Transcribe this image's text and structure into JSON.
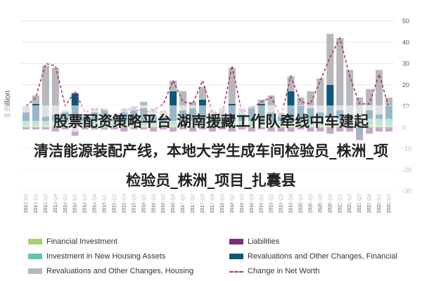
{
  "banner": {
    "line1": "股票配资策略平台 湖南援藏工作队牵线中车建起",
    "line2": "清洁能源装配产线，本地大学生成车间检验员_株洲_项",
    "line3": "检验员_株洲_项目_扎囊县"
  },
  "legend": [
    {
      "label": "Financial Investment",
      "color": "#a9cf6e",
      "style": "box"
    },
    {
      "label": "Liabilities",
      "color": "#7b2d7e",
      "style": "box"
    },
    {
      "label": "Investment in New Housing Assets",
      "color": "#63c2b4",
      "style": "box"
    },
    {
      "label": "Revaluations and Other Changes, Financial",
      "color": "#0d5779",
      "style": "box"
    },
    {
      "label": "Revaluations and Other Changes, Housing",
      "color": "#b6b8bb",
      "style": "box"
    },
    {
      "label": "Change in Net Worth",
      "color": "#b0336a",
      "style": "dash"
    }
  ],
  "chart_data": {
    "type": "bar",
    "stacked": true,
    "ylabel": "$ Billion",
    "ylim": [
      -30,
      50
    ],
    "yticks": [
      -30,
      -20,
      -10,
      0,
      10,
      20,
      30,
      40,
      50
    ],
    "grid": true,
    "legend_position": "bottom",
    "categories": [
      "2013-Q1",
      "2013-Q2",
      "2013-Q3",
      "2013-Q4",
      "2014-Q1",
      "2014-Q2",
      "2014-Q3",
      "2014-Q4",
      "2015-Q1",
      "2015-Q2",
      "2015-Q3",
      "2015-Q4",
      "2016-Q1",
      "2016-Q2",
      "2016-Q3",
      "2016-Q4",
      "2017-Q1",
      "2017-Q2",
      "2017-Q3",
      "2017-Q4",
      "2018-Q1",
      "2018-Q2",
      "2018-Q3",
      "2018-Q4",
      "2019-Q1",
      "2019-Q2",
      "2019-Q3",
      "2019-Q4",
      "2020-Q1",
      "2020-Q2",
      "2020-Q3",
      "2020-Q4",
      "2021-Q1",
      "2021-Q2",
      "2021-Q3",
      "2021-Q4",
      "2022-Q1",
      "2022-Q2"
    ],
    "series": [
      {
        "name": "Financial Investment",
        "color": "#a9cf6e",
        "values": [
          1,
          1,
          1,
          1,
          1,
          1,
          1,
          1,
          1,
          1,
          1,
          1,
          1,
          1,
          1,
          1,
          1,
          1,
          1,
          1,
          1,
          1,
          1,
          1,
          1,
          1,
          1,
          1,
          1,
          1,
          1,
          2,
          1,
          1,
          1,
          1,
          1,
          1
        ]
      },
      {
        "name": "Investment in New Housing Assets",
        "color": "#63c2b4",
        "values": [
          2,
          2,
          2,
          2,
          2,
          2,
          2,
          2,
          2,
          2,
          2,
          2,
          2,
          2,
          2,
          2,
          2,
          2,
          2,
          2,
          2,
          2,
          2,
          2,
          2,
          2,
          2,
          2,
          2,
          3,
          3,
          3,
          3,
          3,
          3,
          3,
          3,
          3
        ]
      },
      {
        "name": "Revaluations and Other Changes, Financial",
        "color": "#0d5779",
        "values": [
          4,
          8,
          2,
          3,
          4,
          13,
          2,
          4,
          5,
          1,
          4,
          5,
          6,
          2,
          2,
          14,
          5,
          6,
          10,
          2,
          2,
          8,
          3,
          6,
          8,
          4,
          2,
          14,
          7,
          5,
          3,
          15,
          4,
          2,
          -4,
          4,
          2,
          6
        ]
      },
      {
        "name": "Revaluations and Other Changes, Housing",
        "color": "#b6b8bb",
        "values": [
          3,
          4,
          24,
          22,
          1,
          -2,
          1,
          2,
          1,
          1,
          2,
          2,
          3,
          4,
          3,
          5,
          9,
          3,
          6,
          3,
          4,
          17,
          3,
          1,
          2,
          8,
          2,
          7,
          4,
          8,
          16,
          24,
          34,
          21,
          10,
          10,
          21,
          4
        ]
      },
      {
        "name": "Liabilities",
        "color": "#7b2d7e",
        "values": [
          -1,
          -1,
          -1,
          -2,
          -1,
          -2,
          -1,
          -1,
          -1,
          -1,
          -2,
          -1,
          -1,
          -2,
          -1,
          -2,
          -1,
          -2,
          -1,
          -2,
          -1,
          -2,
          -1,
          -2,
          -1,
          -2,
          -2,
          -2,
          -1,
          -2,
          -2,
          -3,
          -2,
          -2,
          -2,
          -3,
          -2,
          -2
        ]
      }
    ],
    "line": {
      "name": "Change in Net Worth",
      "color": "#b0336a",
      "values": [
        10,
        14,
        30,
        29,
        10,
        17,
        7,
        9,
        8,
        4,
        8,
        9,
        7,
        8,
        11,
        22,
        12,
        11,
        22,
        7,
        6,
        29,
        7,
        9,
        12,
        14,
        5,
        24,
        12,
        11,
        22,
        33,
        42,
        24,
        11,
        11,
        25,
        9
      ]
    }
  }
}
